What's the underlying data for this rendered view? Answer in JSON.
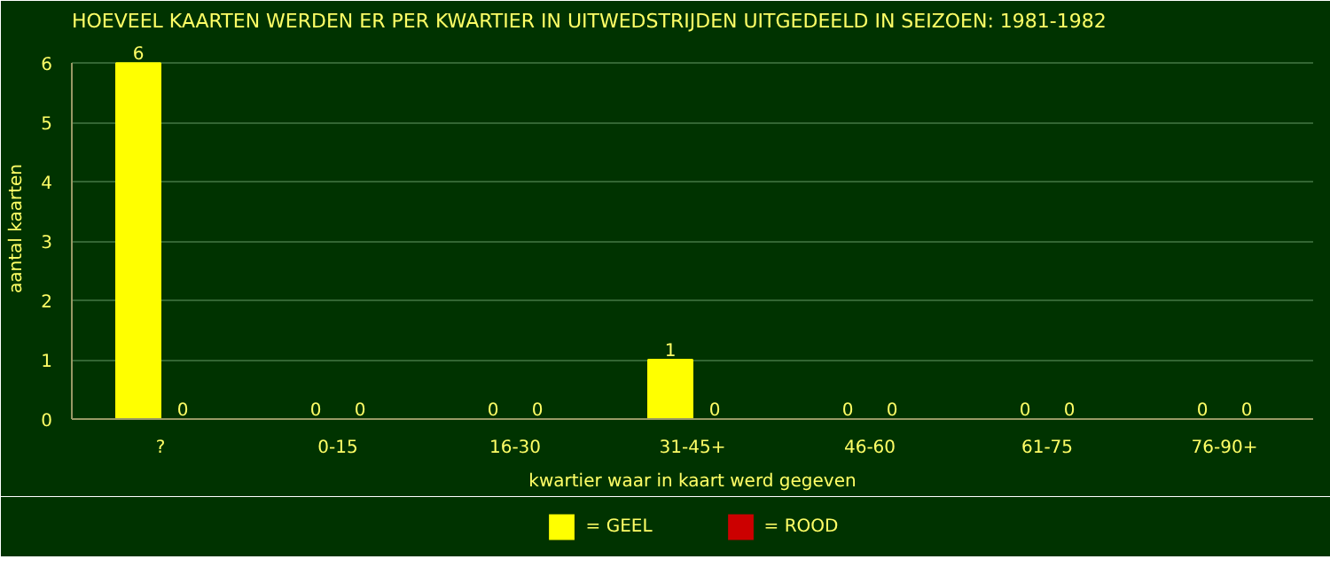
{
  "chart_data": {
    "type": "bar",
    "title": "HOEVEEL KAARTEN WERDEN ER PER KWARTIER IN UITWEDSTRIJDEN UITGEDEELD IN SEIZOEN: 1981-1982",
    "xlabel": "kwartier waar in kaart werd gegeven",
    "ylabel": "aantal kaarten",
    "categories": [
      "?",
      "0-15",
      "16-30",
      "31-45+",
      "46-60",
      "61-75",
      "76-90+"
    ],
    "series": [
      {
        "name": "= GEEL",
        "color": "#ffff00",
        "values": [
          6,
          0,
          0,
          1,
          0,
          0,
          0
        ]
      },
      {
        "name": "= ROOD",
        "color": "#cc0000",
        "values": [
          0,
          0,
          0,
          0,
          0,
          0,
          0
        ]
      }
    ],
    "ylim": [
      0,
      6
    ],
    "yticks": [
      0,
      1,
      2,
      3,
      4,
      5,
      6
    ],
    "grid": "y",
    "legend": "bottom",
    "data_labels": true
  }
}
